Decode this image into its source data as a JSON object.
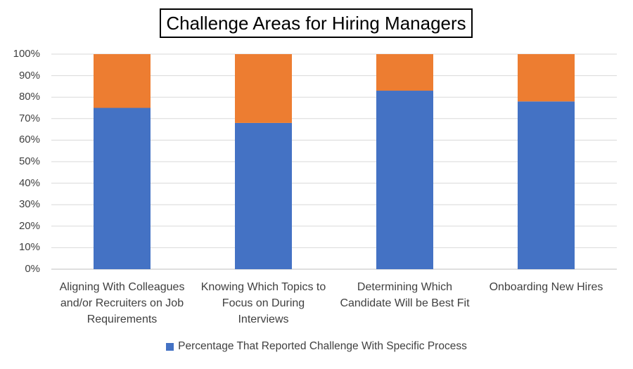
{
  "chart_data": {
    "type": "bar",
    "stacked": true,
    "title": "Challenge Areas for Hiring Managers",
    "categories": [
      "Aligning With Colleagues and/or Recruiters on Job Requirements",
      "Knowing Which Topics to Focus on During Interviews",
      "Determining Which Candidate Will be Best Fit",
      "Onboarding New Hires"
    ],
    "category_lines": [
      [
        "Aligning With Colleagues",
        "and/or Recruiters on Job",
        "Requirements"
      ],
      [
        "Knowing Which Topics to",
        "Focus on During",
        "Interviews"
      ],
      [
        "Determining Which",
        "Candidate Will be Best Fit"
      ],
      [
        "Onboarding New Hires"
      ]
    ],
    "series": [
      {
        "name": "Percentage That Reported Challenge With Specific Process",
        "values": [
          75,
          68,
          83,
          78
        ],
        "color": "#4472C4"
      },
      {
        "values": [
          25,
          32,
          17,
          22
        ],
        "color": "#ED7D31"
      }
    ],
    "yticks": [
      "0%",
      "10%",
      "20%",
      "30%",
      "40%",
      "50%",
      "60%",
      "70%",
      "80%",
      "90%",
      "100%"
    ],
    "ylim": [
      0,
      100
    ],
    "grid": true,
    "legend_position": "bottom"
  }
}
